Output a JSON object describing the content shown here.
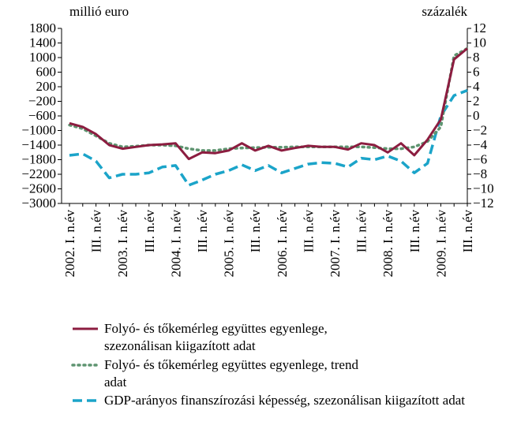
{
  "chart_data": {
    "type": "line",
    "ylabel": "millió euro",
    "y2label": "százalék",
    "categories": [
      "2002. I. n.év",
      null,
      "III. n.év",
      null,
      "2003. I. n.év",
      null,
      "III. n.év",
      null,
      "2004. I. n.év",
      null,
      "III. n.év",
      null,
      "2005. I. n.év",
      null,
      "III. n.év",
      null,
      "2006. I. n.év",
      null,
      "III. n.év",
      null,
      "2007. I. n.év",
      null,
      "III. n.év",
      null,
      "2008. I. n.év",
      null,
      "III. n.év",
      null,
      "2009. I. n.év",
      null,
      "III. n.év"
    ],
    "ylim": [
      -3000,
      1800
    ],
    "yticks": [
      {
        "value": -3000,
        "label": "−3000"
      },
      {
        "value": -2600,
        "label": "−2600"
      },
      {
        "value": -2200,
        "label": "−2200"
      },
      {
        "value": -1800,
        "label": "−1800"
      },
      {
        "value": -1400,
        "label": "−1400"
      },
      {
        "value": -1000,
        "label": "−1000"
      },
      {
        "value": -600,
        "label": "−600"
      },
      {
        "value": -200,
        "label": "−200"
      },
      200,
      600,
      1000,
      1400,
      1800
    ],
    "y2lim": [
      -12,
      12
    ],
    "y2ticks": [
      {
        "value": -12,
        "label": "−12"
      },
      {
        "value": -10,
        "label": "−10"
      },
      {
        "value": -8,
        "label": "−8"
      },
      {
        "value": -6,
        "label": "−6"
      },
      {
        "value": -4,
        "label": "−4"
      },
      {
        "value": -2,
        "label": "−2"
      },
      0,
      2,
      4,
      6,
      8,
      10,
      12
    ],
    "series": [
      {
        "name": "Folyó- és tőkemérleg együttes egyenlege, szezonálisan kiigazított adat",
        "color": "#8c1d40",
        "style": "solid",
        "values": [
          -800,
          -900,
          -1100,
          -1400,
          -1500,
          -1450,
          -1400,
          -1380,
          -1350,
          -1780,
          -1600,
          -1620,
          -1550,
          -1350,
          -1550,
          -1420,
          -1550,
          -1480,
          -1420,
          -1450,
          -1450,
          -1520,
          -1350,
          -1400,
          -1600,
          -1350,
          -1680,
          -1250,
          -700,
          950,
          1250
        ]
      },
      {
        "name": "Folyó- és tőkemérleg együttes egyenlege, trend adat",
        "color": "#5e9470",
        "style": "dotted",
        "values": [
          -850,
          -950,
          -1150,
          -1350,
          -1450,
          -1430,
          -1400,
          -1400,
          -1420,
          -1500,
          -1550,
          -1550,
          -1500,
          -1480,
          -1470,
          -1460,
          -1460,
          -1450,
          -1450,
          -1450,
          -1450,
          -1450,
          -1450,
          -1470,
          -1500,
          -1500,
          -1450,
          -1300,
          -900,
          1050,
          1250
        ]
      },
      {
        "name": "GDP-arányos finanszírozási képesség, szezonálisan kiigazított adat",
        "color": "#1ba4c9",
        "style": "dashed",
        "axis": "y2",
        "values": [
          -5.4,
          -5.2,
          -6.2,
          -8.5,
          -8.0,
          -8.0,
          -7.8,
          -7.0,
          -6.8,
          -9.5,
          -8.8,
          -8.0,
          -7.5,
          -6.7,
          -7.5,
          -6.8,
          -7.8,
          -7.2,
          -6.6,
          -6.4,
          -6.5,
          -7.0,
          -5.8,
          -6.0,
          -5.5,
          -6.2,
          -7.8,
          -6.5,
          0,
          2.8,
          3.5
        ]
      }
    ]
  }
}
